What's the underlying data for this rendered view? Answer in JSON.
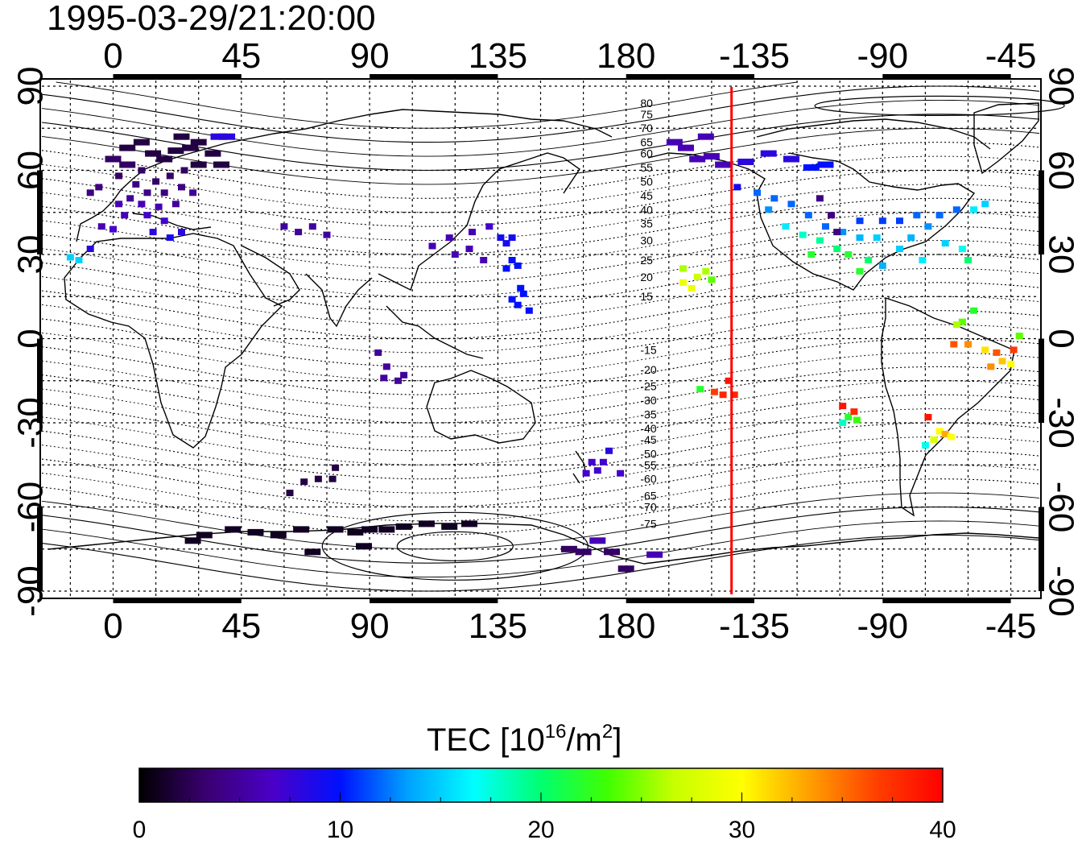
{
  "title": "1995-03-29/21:20:00",
  "colorbar": {
    "label_main": "TEC  [10",
    "label_sup1": "16",
    "label_mid": "/m",
    "label_sup2": "2",
    "label_end": "]",
    "min": 0,
    "max": 40,
    "ticks": [
      0,
      10,
      20,
      30,
      40
    ],
    "tick_labels": [
      "0",
      "10",
      "20",
      "30",
      "40"
    ],
    "colors": [
      "#000000",
      "#3a0070",
      "#4a00c8",
      "#0010ff",
      "#00a0ff",
      "#00ffff",
      "#00ff70",
      "#40ff00",
      "#c8ff00",
      "#ffff00",
      "#ffa000",
      "#ff4000",
      "#ff0000"
    ]
  },
  "chart_data": {
    "type": "map-scatter",
    "projection": "equirectangular",
    "lon_range": [
      -25,
      325
    ],
    "lat_range": [
      -92,
      92
    ],
    "grid": true,
    "lon_ticks": [
      0,
      45,
      90,
      135,
      180,
      225,
      270,
      315
    ],
    "lon_tick_labels": [
      "0",
      "45",
      "90",
      "135",
      "180",
      "-135",
      "-90",
      "-45"
    ],
    "lat_ticks": [
      90,
      60,
      30,
      0,
      -30,
      -60,
      -90
    ],
    "lat_tick_labels": [
      "90",
      "60",
      "30",
      "0",
      "-30",
      "-60",
      "-90"
    ],
    "terminator_lon": 217,
    "terminator_color": "#ff0000",
    "magnetic_lat_labels": [
      "80",
      "75",
      "70",
      "65",
      "60",
      "55",
      "50",
      "45",
      "40",
      "35",
      "30",
      "25",
      "20",
      "15",
      "-15",
      "-20",
      "-25",
      "-30",
      "-35",
      "-40",
      "-45",
      "-50",
      "-55",
      "-60",
      "-65",
      "-70",
      "-75"
    ],
    "magnetic_lat_label_lon": 185,
    "magnetic_lat_label_lats": [
      84,
      80,
      75,
      70,
      66,
      61,
      56,
      51,
      46,
      41,
      35,
      28,
      22,
      15,
      -4,
      -11,
      -17,
      -22,
      -27,
      -32,
      -36,
      -41,
      -45,
      -50,
      -56,
      -60,
      -66
    ],
    "points": [
      {
        "lon": 5,
        "lat": 68,
        "tec": 2
      },
      {
        "lon": 10,
        "lat": 70,
        "tec": 2
      },
      {
        "lon": 14,
        "lat": 66,
        "tec": 2
      },
      {
        "lon": 18,
        "lat": 64,
        "tec": 2
      },
      {
        "lon": 22,
        "lat": 67,
        "tec": 2
      },
      {
        "lon": 27,
        "lat": 68,
        "tec": 2
      },
      {
        "lon": 30,
        "lat": 62,
        "tec": 2
      },
      {
        "lon": 25,
        "lat": 60,
        "tec": 3
      },
      {
        "lon": 20,
        "lat": 58,
        "tec": 3
      },
      {
        "lon": 15,
        "lat": 56,
        "tec": 3
      },
      {
        "lon": 10,
        "lat": 60,
        "tec": 3
      },
      {
        "lon": 5,
        "lat": 62,
        "tec": 3
      },
      {
        "lon": 0,
        "lat": 64,
        "tec": 3
      },
      {
        "lon": 24,
        "lat": 72,
        "tec": 2
      },
      {
        "lon": 30,
        "lat": 70,
        "tec": 2
      },
      {
        "lon": 35,
        "lat": 66,
        "tec": 2
      },
      {
        "lon": 38,
        "lat": 62,
        "tec": 2
      },
      {
        "lon": 2,
        "lat": 58,
        "tec": 3
      },
      {
        "lon": 8,
        "lat": 55,
        "tec": 4
      },
      {
        "lon": 12,
        "lat": 52,
        "tec": 4
      },
      {
        "lon": 18,
        "lat": 52,
        "tec": 4
      },
      {
        "lon": 24,
        "lat": 54,
        "tec": 4
      },
      {
        "lon": 28,
        "lat": 52,
        "tec": 5
      },
      {
        "lon": 6,
        "lat": 50,
        "tec": 5
      },
      {
        "lon": 2,
        "lat": 48,
        "tec": 6
      },
      {
        "lon": 10,
        "lat": 48,
        "tec": 6
      },
      {
        "lon": 16,
        "lat": 47,
        "tec": 6
      },
      {
        "lon": 22,
        "lat": 48,
        "tec": 5
      },
      {
        "lon": -5,
        "lat": 54,
        "tec": 4
      },
      {
        "lon": -8,
        "lat": 52,
        "tec": 4
      },
      {
        "lon": 12,
        "lat": 44,
        "tec": 7
      },
      {
        "lon": 18,
        "lat": 42,
        "tec": 7
      },
      {
        "lon": 24,
        "lat": 38,
        "tec": 8
      },
      {
        "lon": 4,
        "lat": 44,
        "tec": 6
      },
      {
        "lon": -4,
        "lat": 40,
        "tec": 6
      },
      {
        "lon": 0,
        "lat": 39,
        "tec": 7
      },
      {
        "lon": 14,
        "lat": 38,
        "tec": 8
      },
      {
        "lon": 20,
        "lat": 36,
        "tec": 9
      },
      {
        "lon": 37,
        "lat": 72,
        "tec": 8
      },
      {
        "lon": 40,
        "lat": 72,
        "tec": 8
      },
      {
        "lon": -12,
        "lat": 28,
        "tec": 15
      },
      {
        "lon": -15,
        "lat": 29,
        "tec": 15
      },
      {
        "lon": -8,
        "lat": 32,
        "tec": 8
      },
      {
        "lon": 60,
        "lat": 40,
        "tec": 5
      },
      {
        "lon": 65,
        "lat": 38,
        "tec": 5
      },
      {
        "lon": 70,
        "lat": 40,
        "tec": 5
      },
      {
        "lon": 75,
        "lat": 37,
        "tec": 5
      },
      {
        "lon": 112,
        "lat": 33,
        "tec": 6
      },
      {
        "lon": 118,
        "lat": 36,
        "tec": 6
      },
      {
        "lon": 125,
        "lat": 32,
        "tec": 6
      },
      {
        "lon": 120,
        "lat": 30,
        "tec": 6
      },
      {
        "lon": 130,
        "lat": 28,
        "tec": 6
      },
      {
        "lon": 126,
        "lat": 38,
        "tec": 6
      },
      {
        "lon": 132,
        "lat": 40,
        "tec": 7
      },
      {
        "lon": 136,
        "lat": 36,
        "tec": 9
      },
      {
        "lon": 140,
        "lat": 36,
        "tec": 9
      },
      {
        "lon": 138,
        "lat": 34,
        "tec": 9
      },
      {
        "lon": 140,
        "lat": 28,
        "tec": 10
      },
      {
        "lon": 142,
        "lat": 26,
        "tec": 10
      },
      {
        "lon": 138,
        "lat": 25,
        "tec": 10
      },
      {
        "lon": 144,
        "lat": 16,
        "tec": 10
      },
      {
        "lon": 142,
        "lat": 12,
        "tec": 10
      },
      {
        "lon": 146,
        "lat": 10,
        "tec": 10
      },
      {
        "lon": 140,
        "lat": 14,
        "tec": 10
      },
      {
        "lon": 143,
        "lat": 18,
        "tec": 10
      },
      {
        "lon": 95,
        "lat": -14,
        "tec": 5
      },
      {
        "lon": 100,
        "lat": -15,
        "tec": 5
      },
      {
        "lon": 96,
        "lat": -10,
        "tec": 5
      },
      {
        "lon": 102,
        "lat": -13,
        "tec": 5
      },
      {
        "lon": 93,
        "lat": -5,
        "tec": 5
      },
      {
        "lon": 67,
        "lat": -51,
        "tec": 2
      },
      {
        "lon": 72,
        "lat": -50,
        "tec": 2
      },
      {
        "lon": 77,
        "lat": -50,
        "tec": 2
      },
      {
        "lon": 62,
        "lat": -55,
        "tec": 2
      },
      {
        "lon": 78,
        "lat": -46,
        "tec": 2
      },
      {
        "lon": 28,
        "lat": -72,
        "tec": 1
      },
      {
        "lon": 32,
        "lat": -70,
        "tec": 1
      },
      {
        "lon": 42,
        "lat": -68,
        "tec": 1
      },
      {
        "lon": 50,
        "lat": -69,
        "tec": 1
      },
      {
        "lon": 58,
        "lat": -70,
        "tec": 1
      },
      {
        "lon": 66,
        "lat": -68,
        "tec": 1
      },
      {
        "lon": 78,
        "lat": -68,
        "tec": 1
      },
      {
        "lon": 85,
        "lat": -69,
        "tec": 1
      },
      {
        "lon": 90,
        "lat": -68,
        "tec": 1
      },
      {
        "lon": 96,
        "lat": -68,
        "tec": 1
      },
      {
        "lon": 102,
        "lat": -67,
        "tec": 1
      },
      {
        "lon": 110,
        "lat": -66,
        "tec": 1
      },
      {
        "lon": 118,
        "lat": -67,
        "tec": 1
      },
      {
        "lon": 125,
        "lat": -66,
        "tec": 1
      },
      {
        "lon": 70,
        "lat": -76,
        "tec": 1
      },
      {
        "lon": 88,
        "lat": -74,
        "tec": 1
      },
      {
        "lon": 160,
        "lat": -75,
        "tec": 3
      },
      {
        "lon": 165,
        "lat": -76,
        "tec": 3
      },
      {
        "lon": 175,
        "lat": -76,
        "tec": 3
      },
      {
        "lon": 180,
        "lat": -82,
        "tec": 3
      },
      {
        "lon": 190,
        "lat": -77,
        "tec": 6
      },
      {
        "lon": 170,
        "lat": -72,
        "tec": 6
      },
      {
        "lon": 168,
        "lat": -44,
        "tec": 7
      },
      {
        "lon": 170,
        "lat": -47,
        "tec": 7
      },
      {
        "lon": 172,
        "lat": -44,
        "tec": 7
      },
      {
        "lon": 174,
        "lat": -40,
        "tec": 8
      },
      {
        "lon": 166,
        "lat": -48,
        "tec": 7
      },
      {
        "lon": 178,
        "lat": -48,
        "tec": 7
      },
      {
        "lon": 197,
        "lat": 70,
        "tec": 6
      },
      {
        "lon": 201,
        "lat": 68,
        "tec": 6
      },
      {
        "lon": 205,
        "lat": 64,
        "tec": 6
      },
      {
        "lon": 210,
        "lat": 65,
        "tec": 6
      },
      {
        "lon": 214,
        "lat": 62,
        "tec": 6
      },
      {
        "lon": 208,
        "lat": 72,
        "tec": 6
      },
      {
        "lon": 222,
        "lat": 63,
        "tec": 8
      },
      {
        "lon": 230,
        "lat": 66,
        "tec": 8
      },
      {
        "lon": 238,
        "lat": 64,
        "tec": 8
      },
      {
        "lon": 245,
        "lat": 61,
        "tec": 10
      },
      {
        "lon": 250,
        "lat": 62,
        "tec": 10
      },
      {
        "lon": 219,
        "lat": 54,
        "tec": 9
      },
      {
        "lon": 226,
        "lat": 52,
        "tec": 12
      },
      {
        "lon": 232,
        "lat": 50,
        "tec": 12
      },
      {
        "lon": 238,
        "lat": 48,
        "tec": 12
      },
      {
        "lon": 244,
        "lat": 44,
        "tec": 12
      },
      {
        "lon": 230,
        "lat": 46,
        "tec": 13
      },
      {
        "lon": 236,
        "lat": 40,
        "tec": 16
      },
      {
        "lon": 242,
        "lat": 37,
        "tec": 18
      },
      {
        "lon": 248,
        "lat": 35,
        "tec": 19
      },
      {
        "lon": 254,
        "lat": 32,
        "tec": 20
      },
      {
        "lon": 258,
        "lat": 30,
        "tec": 22
      },
      {
        "lon": 245,
        "lat": 30,
        "tec": 22
      },
      {
        "lon": 250,
        "lat": 40,
        "tec": 12
      },
      {
        "lon": 256,
        "lat": 38,
        "tec": 13
      },
      {
        "lon": 262,
        "lat": 36,
        "tec": 14
      },
      {
        "lon": 268,
        "lat": 36,
        "tec": 15
      },
      {
        "lon": 262,
        "lat": 42,
        "tec": 11
      },
      {
        "lon": 270,
        "lat": 42,
        "tec": 11
      },
      {
        "lon": 276,
        "lat": 42,
        "tec": 11
      },
      {
        "lon": 282,
        "lat": 44,
        "tec": 12
      },
      {
        "lon": 286,
        "lat": 40,
        "tec": 13
      },
      {
        "lon": 290,
        "lat": 44,
        "tec": 12
      },
      {
        "lon": 280,
        "lat": 36,
        "tec": 14
      },
      {
        "lon": 276,
        "lat": 32,
        "tec": 15
      },
      {
        "lon": 284,
        "lat": 28,
        "tec": 16
      },
      {
        "lon": 292,
        "lat": 34,
        "tec": 15
      },
      {
        "lon": 298,
        "lat": 32,
        "tec": 17
      },
      {
        "lon": 300,
        "lat": 28,
        "tec": 20
      },
      {
        "lon": 302,
        "lat": 46,
        "tec": 16
      },
      {
        "lon": 306,
        "lat": 48,
        "tec": 15
      },
      {
        "lon": 296,
        "lat": 46,
        "tec": 12
      },
      {
        "lon": 252,
        "lat": 44,
        "tec": 4
      },
      {
        "lon": 254,
        "lat": 38,
        "tec": 4
      },
      {
        "lon": 248,
        "lat": 50,
        "tec": 4
      },
      {
        "lon": 265,
        "lat": 28,
        "tec": 20
      },
      {
        "lon": 262,
        "lat": 24,
        "tec": 22
      },
      {
        "lon": 270,
        "lat": 26,
        "tec": 14
      },
      {
        "lon": 200,
        "lat": 25,
        "tec": 26
      },
      {
        "lon": 205,
        "lat": 22,
        "tec": 27
      },
      {
        "lon": 208,
        "lat": 24,
        "tec": 26
      },
      {
        "lon": 200,
        "lat": 20,
        "tec": 29
      },
      {
        "lon": 203,
        "lat": 18,
        "tec": 29
      },
      {
        "lon": 210,
        "lat": 21,
        "tec": 24
      },
      {
        "lon": 211,
        "lat": -19,
        "tec": 37
      },
      {
        "lon": 214,
        "lat": -20,
        "tec": 38
      },
      {
        "lon": 216,
        "lat": -15,
        "tec": 39
      },
      {
        "lon": 218,
        "lat": -20,
        "tec": 38
      },
      {
        "lon": 206,
        "lat": -18,
        "tec": 22
      },
      {
        "lon": 256,
        "lat": -24,
        "tec": 39
      },
      {
        "lon": 258,
        "lat": -28,
        "tec": 22
      },
      {
        "lon": 260,
        "lat": -26,
        "tec": 38
      },
      {
        "lon": 256,
        "lat": -30,
        "tec": 18
      },
      {
        "lon": 261,
        "lat": -29,
        "tec": 23
      },
      {
        "lon": 286,
        "lat": -28,
        "tec": 39
      },
      {
        "lon": 290,
        "lat": -33,
        "tec": 30
      },
      {
        "lon": 288,
        "lat": -36,
        "tec": 28
      },
      {
        "lon": 292,
        "lat": -34,
        "tec": 33
      },
      {
        "lon": 285,
        "lat": -38,
        "tec": 17
      },
      {
        "lon": 294,
        "lat": -35,
        "tec": 30
      },
      {
        "lon": 295,
        "lat": -2,
        "tec": 36
      },
      {
        "lon": 300,
        "lat": -2,
        "tec": 34
      },
      {
        "lon": 306,
        "lat": -4,
        "tec": 31
      },
      {
        "lon": 310,
        "lat": -5,
        "tec": 36
      },
      {
        "lon": 312,
        "lat": -8,
        "tec": 32
      },
      {
        "lon": 315,
        "lat": -9,
        "tec": 30
      },
      {
        "lon": 308,
        "lat": -10,
        "tec": 34
      },
      {
        "lon": 316,
        "lat": -4,
        "tec": 37
      },
      {
        "lon": 318,
        "lat": 1,
        "tec": 24
      },
      {
        "lon": 298,
        "lat": 6,
        "tec": 24
      },
      {
        "lon": 302,
        "lat": 10,
        "tec": 22
      },
      {
        "lon": 296,
        "lat": 5,
        "tec": 26
      }
    ]
  }
}
